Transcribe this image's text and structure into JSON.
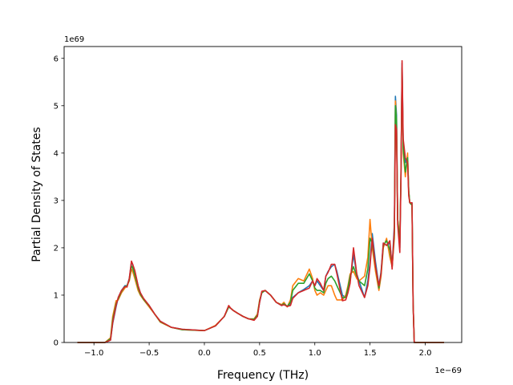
{
  "chart_data": {
    "type": "line",
    "xlabel": "Frequency (THz)",
    "ylabel": "Partial Density of States",
    "x_offset_label": "1e−69",
    "y_offset_label": "1e69",
    "xlim": [
      -1.27,
      2.33
    ],
    "ylim": [
      0,
      6.25
    ],
    "xticks": [
      -1.0,
      -0.5,
      0.0,
      0.5,
      1.0,
      1.5,
      2.0
    ],
    "xtick_labels": [
      "−1.0",
      "−0.5",
      "0.0",
      "0.5",
      "1.0",
      "1.5",
      "2.0"
    ],
    "yticks": [
      0,
      1,
      2,
      3,
      4,
      5,
      6
    ],
    "ytick_labels": [
      "0",
      "1",
      "2",
      "3",
      "4",
      "5",
      "6"
    ],
    "grid": false,
    "legend": "none",
    "x": [
      -1.15,
      -0.9,
      -0.85,
      -0.83,
      -0.8,
      -0.78,
      -0.75,
      -0.72,
      -0.7,
      -0.68,
      -0.66,
      -0.65,
      -0.63,
      -0.6,
      -0.58,
      -0.55,
      -0.5,
      -0.45,
      -0.4,
      -0.3,
      -0.2,
      0.0,
      0.1,
      0.18,
      0.22,
      0.24,
      0.26,
      0.3,
      0.35,
      0.4,
      0.45,
      0.48,
      0.5,
      0.52,
      0.55,
      0.6,
      0.65,
      0.7,
      0.72,
      0.75,
      0.78,
      0.8,
      0.85,
      0.9,
      0.95,
      0.98,
      1.0,
      1.02,
      1.05,
      1.08,
      1.1,
      1.12,
      1.15,
      1.18,
      1.2,
      1.25,
      1.28,
      1.3,
      1.32,
      1.35,
      1.38,
      1.4,
      1.45,
      1.48,
      1.5,
      1.52,
      1.55,
      1.58,
      1.6,
      1.62,
      1.65,
      1.68,
      1.7,
      1.72,
      1.73,
      1.74,
      1.75,
      1.77,
      1.78,
      1.79,
      1.8,
      1.82,
      1.84,
      1.85,
      1.86,
      1.88,
      1.89,
      1.9,
      1.91,
      2.0,
      2.17
    ],
    "series": [
      {
        "color": "#1f77b4",
        "values": [
          0,
          0,
          0.05,
          0.4,
          0.75,
          0.95,
          1.1,
          1.2,
          1.2,
          1.35,
          1.7,
          1.65,
          1.5,
          1.2,
          1.05,
          0.92,
          0.78,
          0.6,
          0.45,
          0.32,
          0.28,
          0.25,
          0.35,
          0.55,
          0.75,
          0.72,
          0.68,
          0.62,
          0.55,
          0.5,
          0.48,
          0.55,
          0.85,
          1.05,
          1.1,
          1.0,
          0.85,
          0.78,
          0.8,
          0.77,
          0.8,
          0.95,
          1.05,
          1.12,
          1.2,
          1.3,
          1.2,
          1.3,
          1.2,
          1.1,
          1.4,
          1.5,
          1.6,
          1.65,
          1.5,
          1.0,
          0.95,
          1.1,
          1.3,
          1.85,
          1.45,
          1.3,
          0.95,
          1.3,
          1.7,
          2.3,
          1.7,
          1.2,
          1.5,
          2.1,
          2.05,
          2.1,
          1.6,
          2.5,
          5.2,
          4.8,
          2.6,
          2.0,
          3.5,
          5.9,
          4.2,
          3.8,
          3.9,
          3.2,
          2.95,
          2.95,
          0.8,
          0,
          0,
          0,
          0
        ]
      },
      {
        "color": "#ff7f0e",
        "values": [
          0,
          0,
          0.1,
          0.55,
          0.88,
          0.9,
          1.05,
          1.15,
          1.2,
          1.3,
          1.55,
          1.5,
          1.35,
          1.1,
          1.0,
          0.9,
          0.75,
          0.6,
          0.43,
          0.32,
          0.27,
          0.25,
          0.36,
          0.55,
          0.75,
          0.72,
          0.68,
          0.62,
          0.55,
          0.5,
          0.5,
          0.6,
          0.9,
          1.05,
          1.1,
          1.0,
          0.85,
          0.8,
          0.85,
          0.75,
          0.9,
          1.2,
          1.35,
          1.3,
          1.55,
          1.35,
          1.1,
          1.0,
          1.05,
          1.0,
          1.1,
          1.2,
          1.2,
          1.0,
          0.9,
          0.9,
          1.0,
          1.2,
          1.45,
          1.5,
          1.35,
          1.3,
          1.4,
          1.8,
          2.6,
          2.0,
          1.5,
          1.1,
          1.4,
          2.0,
          2.2,
          1.8,
          1.6,
          2.2,
          5.1,
          4.6,
          2.6,
          2.2,
          3.5,
          5.7,
          4.0,
          3.5,
          4.0,
          3.2,
          2.95,
          2.9,
          0.8,
          0,
          0,
          0,
          0
        ]
      },
      {
        "color": "#2ca02c",
        "values": [
          0,
          0,
          0.08,
          0.48,
          0.82,
          0.92,
          1.08,
          1.18,
          1.2,
          1.32,
          1.62,
          1.58,
          1.42,
          1.15,
          1.02,
          0.91,
          0.77,
          0.6,
          0.44,
          0.32,
          0.27,
          0.25,
          0.35,
          0.55,
          0.75,
          0.72,
          0.68,
          0.62,
          0.55,
          0.5,
          0.49,
          0.58,
          0.88,
          1.05,
          1.1,
          1.0,
          0.85,
          0.79,
          0.82,
          0.76,
          0.85,
          1.1,
          1.25,
          1.25,
          1.45,
          1.3,
          1.15,
          1.1,
          1.1,
          1.05,
          1.25,
          1.35,
          1.4,
          1.3,
          1.2,
          0.95,
          0.95,
          1.15,
          1.4,
          1.6,
          1.4,
          1.3,
          1.2,
          1.55,
          2.2,
          2.1,
          1.6,
          1.15,
          1.45,
          2.05,
          2.15,
          1.95,
          1.6,
          2.3,
          5.0,
          4.7,
          2.6,
          2.1,
          3.5,
          5.8,
          4.1,
          3.6,
          3.9,
          3.2,
          2.95,
          2.9,
          0.8,
          0,
          0,
          0,
          0
        ]
      },
      {
        "color": "#d62728",
        "values": [
          0,
          0,
          0.05,
          0.42,
          0.78,
          0.95,
          1.1,
          1.18,
          1.17,
          1.35,
          1.72,
          1.66,
          1.52,
          1.2,
          1.05,
          0.93,
          0.78,
          0.6,
          0.45,
          0.32,
          0.28,
          0.25,
          0.35,
          0.55,
          0.78,
          0.72,
          0.68,
          0.62,
          0.55,
          0.5,
          0.47,
          0.55,
          0.85,
          1.08,
          1.1,
          1.0,
          0.85,
          0.78,
          0.8,
          0.76,
          0.78,
          0.93,
          1.05,
          1.1,
          1.15,
          1.3,
          1.2,
          1.35,
          1.25,
          1.1,
          1.4,
          1.48,
          1.65,
          1.65,
          1.45,
          0.88,
          0.9,
          1.05,
          1.25,
          2.0,
          1.45,
          1.2,
          0.95,
          1.2,
          1.6,
          2.2,
          1.6,
          1.2,
          1.45,
          2.1,
          2.05,
          2.15,
          1.55,
          2.4,
          4.6,
          4.5,
          2.5,
          1.9,
          3.4,
          5.95,
          4.3,
          3.9,
          3.8,
          3.1,
          2.95,
          2.95,
          0.8,
          0,
          0,
          0,
          0
        ]
      }
    ]
  }
}
